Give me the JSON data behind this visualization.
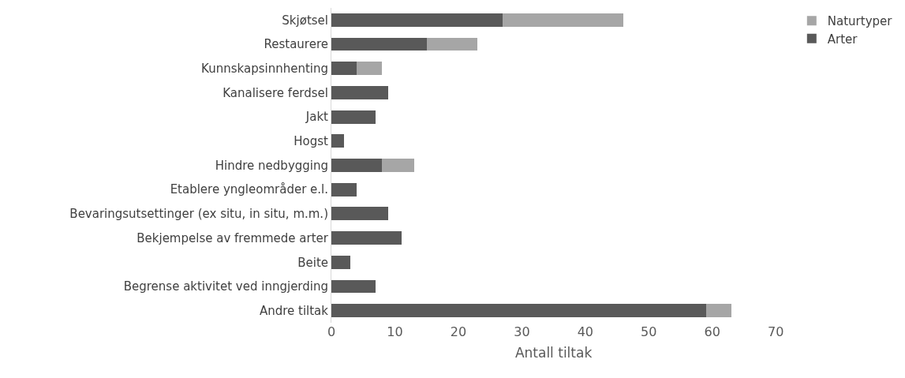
{
  "chart_data": {
    "type": "bar",
    "orientation": "horizontal",
    "stacked": true,
    "xlabel": "Antall tiltak",
    "categories": [
      "Skjøtsel",
      "Restaurere",
      "Kunnskapsinnhenting",
      "Kanalisere ferdsel",
      "Jakt",
      "Hogst",
      "Hindre nedbygging",
      "Etablere yngleområder e.l.",
      "Bevaringsutsettinger (ex situ, in situ, m.m.)",
      "Bekjempelse av fremmede arter",
      "Beite",
      "Begrense aktivitet ved inngjerding",
      "Andre tiltak"
    ],
    "series": [
      {
        "name": "Arter",
        "color": "#595959",
        "values": [
          27,
          15,
          4,
          9,
          7,
          2,
          8,
          4,
          9,
          11,
          3,
          7,
          59
        ]
      },
      {
        "name": "Naturtyper",
        "color": "#a6a6a6",
        "values": [
          19,
          8,
          4,
          null,
          null,
          null,
          5,
          null,
          null,
          null,
          null,
          null,
          4
        ]
      }
    ],
    "xlim": [
      0,
      70
    ],
    "xticks": [
      0,
      10,
      20,
      30,
      40,
      50,
      60,
      70
    ],
    "grid": false,
    "legend": "top right"
  }
}
